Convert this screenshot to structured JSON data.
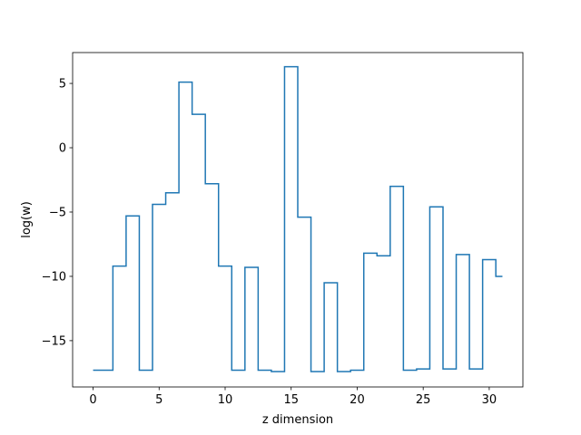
{
  "chart_data": {
    "type": "line",
    "drawstyle": "steps-mid",
    "title": "",
    "xlabel": "z dimension",
    "ylabel": "log(w)",
    "xlim": [
      -1.55,
      32.55
    ],
    "ylim": [
      -18.6,
      7.4
    ],
    "x_ticks": [
      0,
      5,
      10,
      15,
      20,
      25,
      30
    ],
    "x_tick_labels": [
      "0",
      "5",
      "10",
      "15",
      "20",
      "25",
      "30"
    ],
    "y_ticks": [
      5,
      0,
      -5,
      -10,
      -15
    ],
    "y_tick_labels": [
      "5",
      "0",
      "−5",
      "−10",
      "−15"
    ],
    "grid": false,
    "series": [
      {
        "color": "#1f77b4",
        "x": [
          0,
          1,
          2,
          3,
          4,
          5,
          6,
          7,
          8,
          9,
          10,
          11,
          12,
          13,
          14,
          15,
          16,
          17,
          18,
          19,
          20,
          21,
          22,
          23,
          24,
          25,
          26,
          27,
          28,
          29,
          30,
          31
        ],
        "values": [
          -17.3,
          -17.3,
          -9.2,
          -5.3,
          -17.3,
          -4.4,
          -3.5,
          5.1,
          2.6,
          -2.8,
          -9.2,
          -17.3,
          -9.3,
          -17.3,
          -17.4,
          6.3,
          -5.4,
          -17.4,
          -10.5,
          -17.4,
          -17.3,
          -8.2,
          -8.4,
          -3.0,
          -17.3,
          -17.2,
          -4.6,
          -17.2,
          -8.3,
          -17.2,
          -8.7,
          -10.0
        ]
      }
    ]
  }
}
